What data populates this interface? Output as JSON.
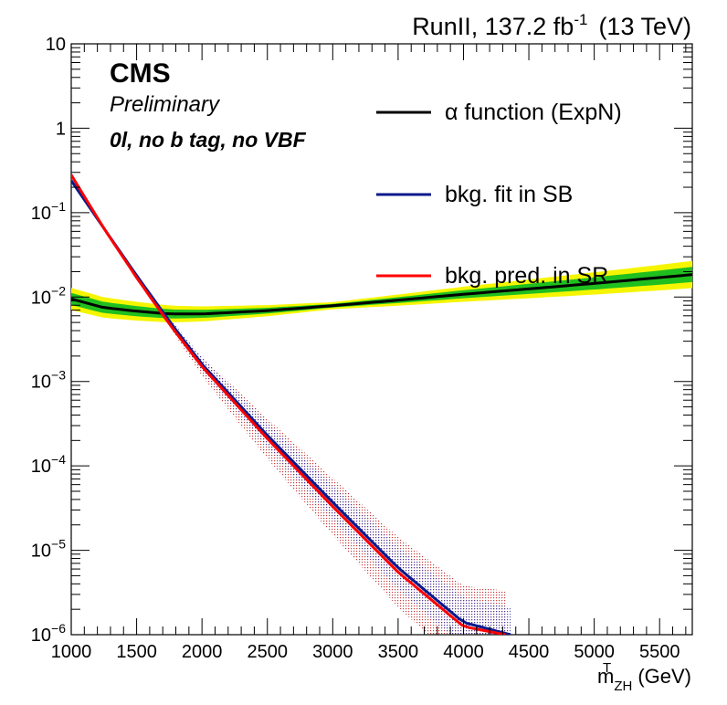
{
  "header": {
    "lumi_run": "RunII, 137.2 fb",
    "lumi_exp": "-1",
    "lumi_energy": "(13 TeV)"
  },
  "labels": {
    "cms": "CMS",
    "preliminary": "Preliminary",
    "category": "0l, no b tag, no VBF"
  },
  "chart_data": {
    "type": "line",
    "xlabel_main": "m",
    "xlabel_sup": "T",
    "xlabel_sub": "ZH",
    "xlabel_unit": "(GeV)",
    "xlim": [
      1000,
      5750
    ],
    "ylim": [
      1e-06,
      10
    ],
    "yscale": "log",
    "x_ticks": [
      1000,
      1500,
      2000,
      2500,
      3000,
      3500,
      4000,
      4500,
      5000,
      5500
    ],
    "y_ticks": [
      {
        "value": 10,
        "label": "10"
      },
      {
        "value": 1,
        "label": "1"
      },
      {
        "value": 0.1,
        "base": "10",
        "exp": "−1"
      },
      {
        "value": 0.01,
        "base": "10",
        "exp": "−2"
      },
      {
        "value": 0.001,
        "base": "10",
        "exp": "−3"
      },
      {
        "value": 0.0001,
        "base": "10",
        "exp": "−4"
      },
      {
        "value": 1e-05,
        "base": "10",
        "exp": "−5"
      },
      {
        "value": 1e-06,
        "base": "10",
        "exp": "−6"
      }
    ],
    "legend_position": "top-right",
    "series": [
      {
        "name": "α function (ExpN)",
        "color": "#000000",
        "band_inner_color": "#1fbf1f",
        "band_outer_color": "#f5f500",
        "x": [
          1000,
          1250,
          1500,
          1750,
          2000,
          2500,
          3000,
          3500,
          4000,
          4500,
          5000,
          5500,
          5750
        ],
        "y": [
          0.0095,
          0.0075,
          0.0068,
          0.0063,
          0.0063,
          0.0069,
          0.0079,
          0.0092,
          0.0108,
          0.0125,
          0.0145,
          0.017,
          0.0185
        ]
      },
      {
        "name": "bkg. fit in SB",
        "color": "#0b1a8c",
        "band_color": "#3a3aa8",
        "x": [
          1000,
          1250,
          1500,
          1750,
          2000,
          2500,
          3000,
          3500,
          4000,
          4360
        ],
        "y": [
          0.24,
          0.065,
          0.018,
          0.0052,
          0.0016,
          0.00023,
          3.7e-05,
          6.2e-06,
          1.4e-06,
          1e-06
        ]
      },
      {
        "name": "bkg. pred. in SR",
        "color": "#ff0000",
        "band_color": "#c0262a",
        "x": [
          1000,
          1250,
          1500,
          1750,
          2000,
          2500,
          3000,
          3500,
          4000,
          4320
        ],
        "y": [
          0.28,
          0.065,
          0.017,
          0.0048,
          0.0015,
          0.00021,
          3.3e-05,
          5.5e-06,
          1.25e-06,
          1e-06
        ]
      }
    ]
  }
}
